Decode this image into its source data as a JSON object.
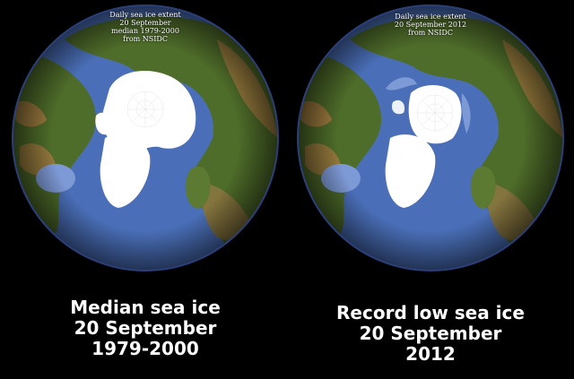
{
  "left_globe": {
    "title_lines": [
      "Daily sea ice extent",
      "20 September",
      "median 1979-2000",
      "from NSIDC"
    ],
    "caption_lines": [
      "Median sea ice",
      "20 September",
      "1979-2000"
    ]
  },
  "right_globe": {
    "title_lines": [
      "Daily sea ice extent",
      "20 September 2012",
      "from NSIDC"
    ],
    "caption_lines": [
      "Record low sea ice",
      "20 September",
      "2012"
    ]
  },
  "colors": {
    "background": "#000000",
    "ocean": "#4a6fb8",
    "shallow_sea": "#7e9ad6",
    "land_green": "#4f6d2a",
    "land_brown": "#9b7a3e",
    "ice": "#ffffff",
    "rim": "#2b3f7a"
  }
}
